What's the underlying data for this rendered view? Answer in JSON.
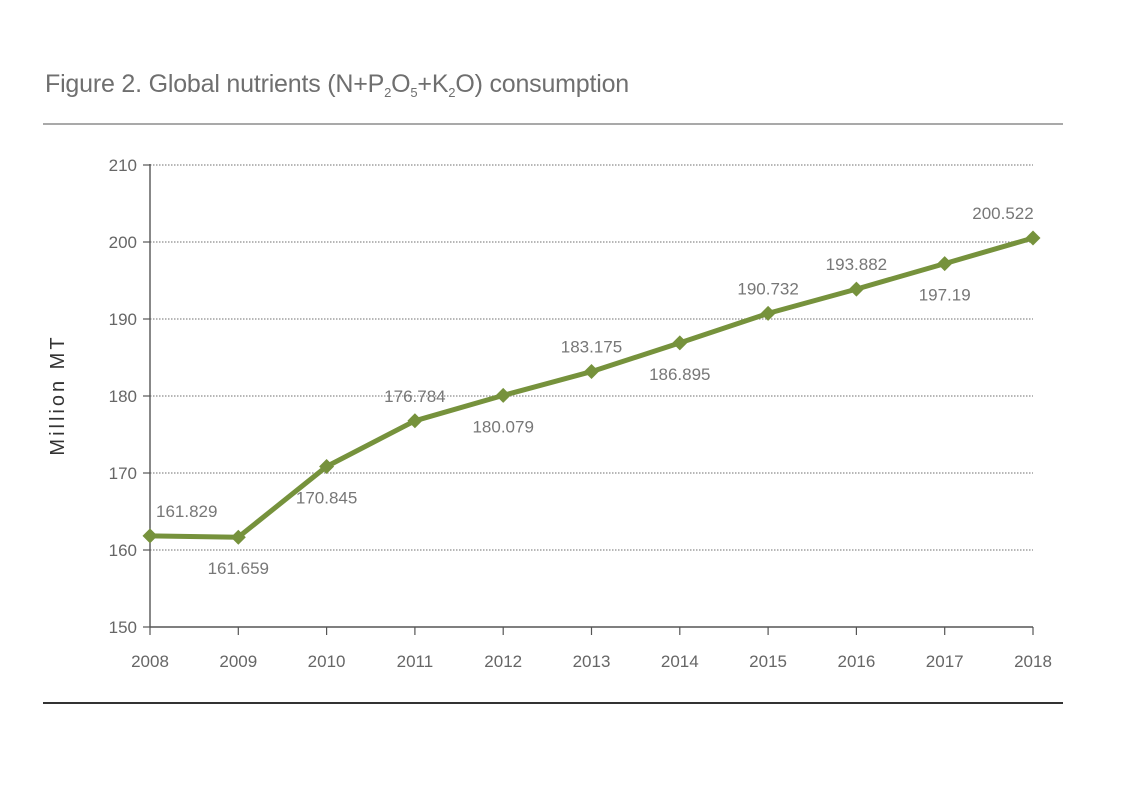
{
  "title": {
    "prefix": "Figure 2. Global nutrients (N+P",
    "sub1": "2",
    "mid1": "O",
    "sub2": "5",
    "mid2": "+K",
    "sub3": "2",
    "suffix": "O) consumption"
  },
  "chart_data": {
    "type": "line",
    "title": "Figure 2. Global nutrients (N+P2O5+K2O) consumption",
    "xlabel": "",
    "ylabel": "Million MT",
    "categories": [
      "2008",
      "2009",
      "2010",
      "2011",
      "2012",
      "2013",
      "2014",
      "2015",
      "2016",
      "2017",
      "2018"
    ],
    "series": [
      {
        "values": [
          161.829,
          161.659,
          170.845,
          176.784,
          180.079,
          183.175,
          186.895,
          190.732,
          193.882,
          197.19,
          200.522
        ],
        "data_labels": [
          "161.829",
          "161.659",
          "170.845",
          "176.784",
          "180.079",
          "183.175",
          "186.895",
          "190.732",
          "193.882",
          "197.19",
          "200.522"
        ],
        "color": "#76923c",
        "marker": "diamond"
      }
    ],
    "ylim": [
      150,
      210
    ],
    "yticks": [
      150,
      160,
      170,
      180,
      190,
      200,
      210
    ],
    "grid": "horizontal dotted",
    "legend": "none"
  }
}
